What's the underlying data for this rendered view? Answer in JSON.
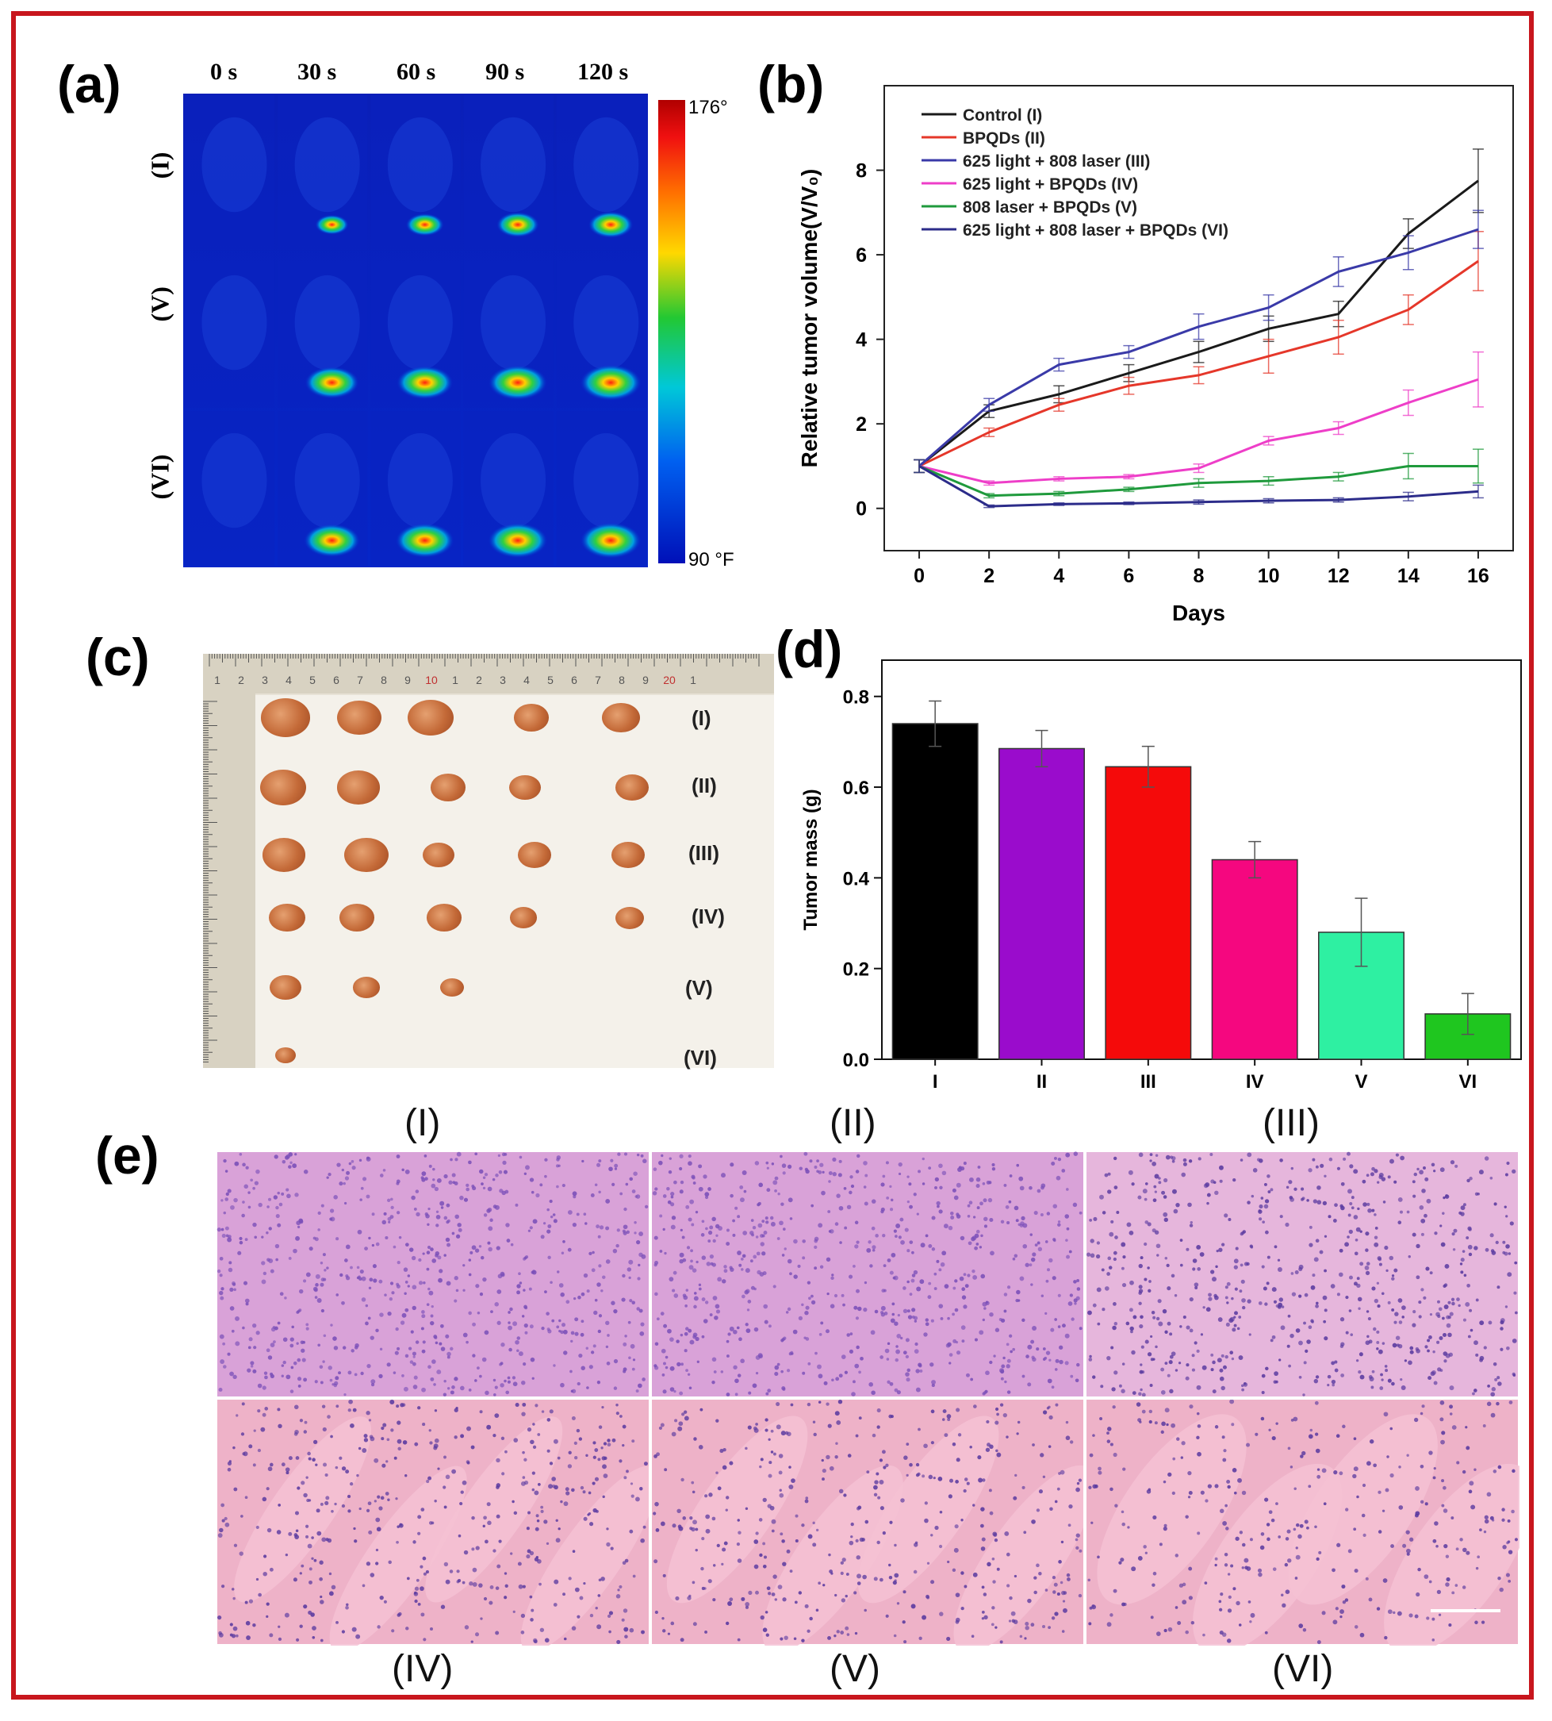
{
  "figure": {
    "panel_labels": {
      "a": "(a)",
      "b": "(b)",
      "c": "(c)",
      "d": "(d)",
      "e": "(e)"
    },
    "colors": {
      "frame": "#c8161d"
    }
  },
  "panel_a": {
    "times": [
      "0 s",
      "30 s",
      "60 s",
      "90 s",
      "120 s"
    ],
    "rows": [
      "(I)",
      "(V)",
      "(VI)"
    ],
    "colorbar": {
      "max_label": "176°",
      "min_label": "90 °F"
    },
    "hotspot_intensity": [
      [
        0,
        0.35,
        0.45,
        0.55,
        0.6
      ],
      [
        0,
        0.8,
        0.85,
        0.9,
        0.95
      ],
      [
        0,
        0.85,
        0.9,
        0.92,
        0.95
      ]
    ]
  },
  "chart_data": [
    {
      "type": "line",
      "ylabel": "Relative tumor volume(V/V₀)",
      "xlabel": "Days",
      "x": [
        0,
        2,
        4,
        6,
        8,
        10,
        12,
        14,
        16
      ],
      "xlim": [
        -1,
        17
      ],
      "ylim": [
        -1,
        10
      ],
      "xticks": [
        0,
        2,
        4,
        6,
        8,
        10,
        12,
        14,
        16
      ],
      "yticks": [
        0,
        2,
        4,
        6,
        8
      ],
      "legend_position": "top-left",
      "series": [
        {
          "name": "Control (I)",
          "color": "#1a1a1a",
          "values": [
            1,
            2.3,
            2.7,
            3.2,
            3.7,
            4.25,
            4.6,
            6.5,
            7.75
          ],
          "errors": [
            0.15,
            0.15,
            0.2,
            0.2,
            0.25,
            0.3,
            0.3,
            0.35,
            0.75
          ]
        },
        {
          "name": "BPQDs (II)",
          "color": "#e5372a",
          "values": [
            1,
            1.8,
            2.45,
            2.9,
            3.15,
            3.6,
            4.05,
            4.7,
            5.85
          ],
          "errors": [
            0.15,
            0.1,
            0.15,
            0.2,
            0.2,
            0.4,
            0.4,
            0.35,
            0.7
          ]
        },
        {
          "name": "625 light + 808 laser (III)",
          "color": "#3a3aa8",
          "values": [
            1,
            2.45,
            3.4,
            3.7,
            4.3,
            4.75,
            5.6,
            6.05,
            6.6
          ],
          "errors": [
            0.15,
            0.15,
            0.15,
            0.15,
            0.3,
            0.3,
            0.35,
            0.4,
            0.45
          ]
        },
        {
          "name": "625 light + BPQDs (IV)",
          "color": "#ee3ec8",
          "values": [
            1,
            0.6,
            0.7,
            0.75,
            0.95,
            1.6,
            1.9,
            2.5,
            3.05
          ],
          "errors": [
            0.15,
            0.05,
            0.05,
            0.05,
            0.1,
            0.1,
            0.15,
            0.3,
            0.65
          ]
        },
        {
          "name": "808 laser + BPQDs (V)",
          "color": "#1f9a3c",
          "values": [
            1,
            0.3,
            0.35,
            0.45,
            0.6,
            0.65,
            0.75,
            1.0,
            1.0
          ],
          "errors": [
            0.15,
            0.05,
            0.05,
            0.05,
            0.1,
            0.1,
            0.1,
            0.3,
            0.4
          ]
        },
        {
          "name": "625 light + 808 laser + BPQDs (VI)",
          "color": "#2c2c8a",
          "values": [
            1,
            0.05,
            0.1,
            0.12,
            0.15,
            0.18,
            0.2,
            0.28,
            0.4
          ],
          "errors": [
            0.15,
            0.03,
            0.03,
            0.03,
            0.05,
            0.05,
            0.05,
            0.1,
            0.15
          ]
        }
      ]
    },
    {
      "type": "bar",
      "ylabel": "Tumor mass (g)",
      "categories": [
        "I",
        "II",
        "III",
        "IV",
        "V",
        "VI"
      ],
      "values": [
        0.74,
        0.685,
        0.645,
        0.44,
        0.28,
        0.1
      ],
      "errors": [
        0.05,
        0.04,
        0.045,
        0.04,
        0.075,
        0.045
      ],
      "colors": [
        "#000000",
        "#9a0ccc",
        "#f50a0a",
        "#f5077f",
        "#2ef0a2",
        "#1fc61f"
      ],
      "ylim": [
        0,
        0.88
      ],
      "yticks": [
        "0.0",
        "0.2",
        "0.4",
        "0.6",
        "0.8"
      ]
    }
  ],
  "panel_c": {
    "rows": [
      "(I)",
      "(II)",
      "(III)",
      "(IV)",
      "(V)",
      "(VI)"
    ],
    "counts": [
      5,
      5,
      5,
      5,
      3,
      1
    ],
    "ruler_labels": [
      "1",
      "2",
      "3",
      "4",
      "5",
      "6",
      "7",
      "8",
      "9",
      "10",
      "1",
      "2",
      "3",
      "4",
      "5",
      "6",
      "7",
      "8",
      "9",
      "20",
      "1"
    ]
  },
  "panel_e": {
    "labels_top": [
      "(I)",
      "(II)",
      "(III)"
    ],
    "labels_bottom": [
      "(IV)",
      "(V)",
      "(VI)"
    ],
    "necrosis_level": [
      0,
      0,
      0.1,
      0.55,
      0.65,
      0.85
    ]
  }
}
